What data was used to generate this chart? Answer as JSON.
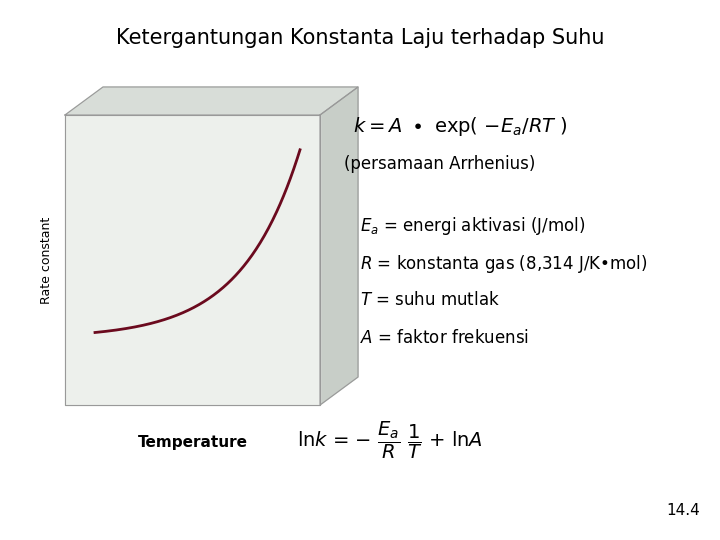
{
  "title": "Ketergantungan Konstanta Laju terhadap Suhu",
  "title_fontsize": 15,
  "background_color": "#ffffff",
  "box_front_color": "#edf0ec",
  "box_top_color": "#d8ddd8",
  "box_right_color": "#c8cec8",
  "box_edge_color": "#999999",
  "curve_color": "#6b0a1e",
  "curve_linewidth": 2.0,
  "ylabel_text": "Rate constant",
  "xlabel_text": "Temperature",
  "eq1_text": "$k = A \\bullet$ exp( $-E_a/RT$ )",
  "eq2_text": "(persamaan Arrhenius)",
  "def1": "$E_a$ = energi aktivasi (J/mol)",
  "def2": "$R$ = konstanta gas (8,314 J/K•mol)",
  "def3": "$T$ = suhu mutlak",
  "def4": "$A$ = faktor frekuensi",
  "footnote": "14.4",
  "eq_fontsize": 14,
  "def_fontsize": 12,
  "lnk_fontsize": 13,
  "ylabel_fontsize": 9,
  "xlabel_fontsize": 11
}
